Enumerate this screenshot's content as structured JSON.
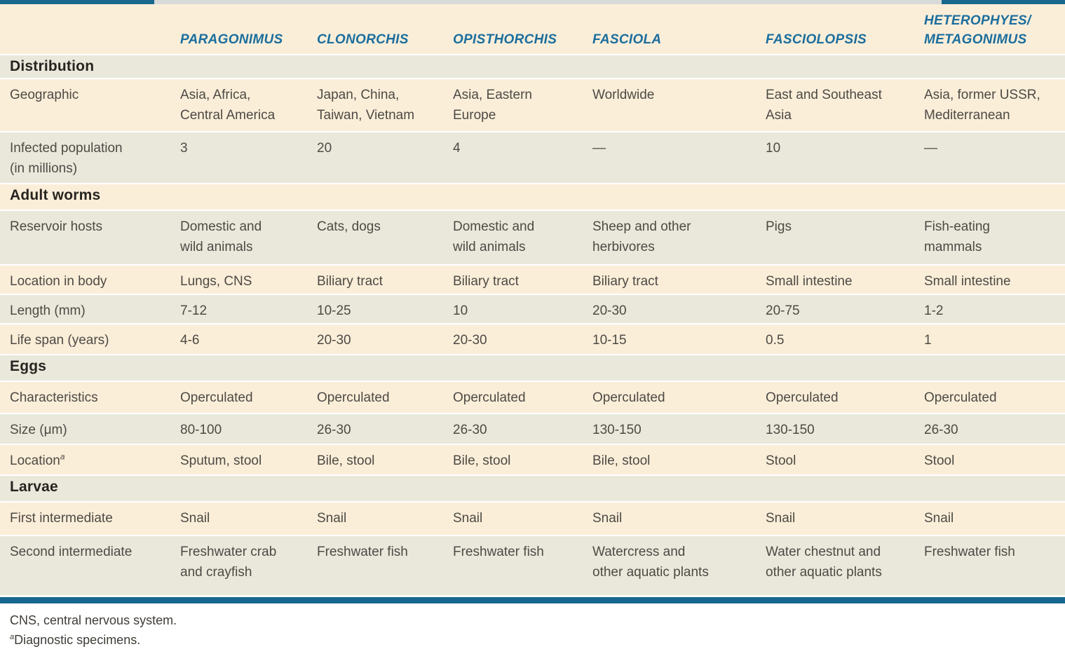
{
  "colors": {
    "teal": "#17678f",
    "header_text": "#1b6e9d",
    "cream": "#fbeed9",
    "gray": "#eae8db"
  },
  "column_headers": [
    "PARAGONIMUS",
    "CLONORCHIS",
    "OPISTHORCHIS",
    "FASCIOLA",
    "FASCIOLOPSIS",
    "HETEROPHYES/\nMETAGONIMUS"
  ],
  "sections": [
    {
      "title": "Distribution",
      "rows": [
        {
          "label": "Geographic",
          "cells": [
            "Asia, Africa,\nCentral America",
            "Japan, China,\nTaiwan, Vietnam",
            "Asia, Eastern\nEurope",
            "Worldwide",
            "East and Southeast\nAsia",
            "Asia, former USSR,\nMediterranean"
          ]
        },
        {
          "label": "Infected population\n(in millions)",
          "cells": [
            "3",
            "20",
            "4",
            "—",
            "10",
            "—"
          ]
        }
      ]
    },
    {
      "title": "Adult worms",
      "rows": [
        {
          "label": "Reservoir hosts",
          "cells": [
            "Domestic and\nwild animals",
            "Cats, dogs",
            "Domestic and\nwild animals",
            "Sheep and other\nherbivores",
            "Pigs",
            "Fish-eating\nmammals"
          ]
        },
        {
          "label": "Location in body",
          "cells": [
            "Lungs, CNS",
            "Biliary tract",
            "Biliary tract",
            "Biliary tract",
            "Small intestine",
            "Small intestine"
          ]
        },
        {
          "label": "Length (mm)",
          "cells": [
            "7-12",
            "10-25",
            "10",
            "20-30",
            "20-75",
            "1-2"
          ]
        },
        {
          "label": "Life span (years)",
          "cells": [
            "4-6",
            "20-30",
            "20-30",
            "10-15",
            "0.5",
            "1"
          ]
        }
      ]
    },
    {
      "title": "Eggs",
      "rows": [
        {
          "label": "Characteristics",
          "cells": [
            "Operculated",
            "Operculated",
            "Operculated",
            "Operculated",
            "Operculated",
            "Operculated"
          ]
        },
        {
          "label": "Size (μm)",
          "cells": [
            "80-100",
            "26-30",
            "26-30",
            "130-150",
            "130-150",
            "26-30"
          ]
        },
        {
          "label": "Location",
          "label_sup": "a",
          "cells": [
            "Sputum, stool",
            "Bile, stool",
            "Bile, stool",
            "Bile, stool",
            "Stool",
            "Stool"
          ]
        }
      ]
    },
    {
      "title": "Larvae",
      "rows": [
        {
          "label": "First intermediate",
          "cells": [
            "Snail",
            "Snail",
            "Snail",
            "Snail",
            "Snail",
            "Snail"
          ]
        },
        {
          "label": "Second intermediate",
          "cells": [
            "Freshwater crab\nand crayfish",
            "Freshwater fish",
            "Freshwater fish",
            "Watercress and\nother aquatic plants",
            "Water chestnut and\nother aquatic plants",
            "Freshwater fish"
          ]
        }
      ]
    }
  ],
  "footnotes": [
    {
      "sup": "",
      "text": "CNS, central nervous system."
    },
    {
      "sup": "a",
      "text": "Diagnostic specimens."
    }
  ]
}
